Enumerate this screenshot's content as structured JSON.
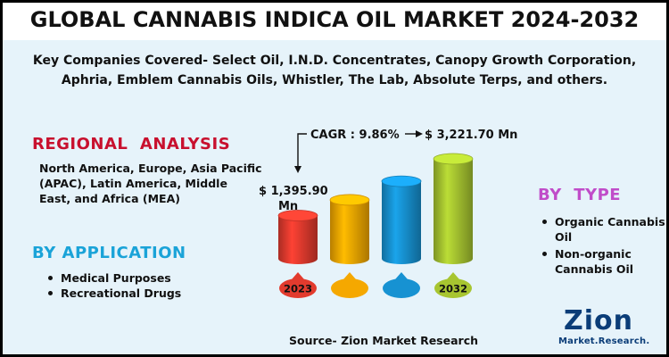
{
  "header": {
    "title": "GLOBAL CANNABIS INDICA OIL MARKET 2024-2032",
    "subtitle": "Key Companies Covered- Select Oil, I.N.D. Concentrates, Canopy Growth Corporation, Aphria, Emblem Cannabis Oils, Whistler, The Lab, Absolute Terps, and others."
  },
  "regional": {
    "title": "REGIONAL  ANALYSIS",
    "text": "North America, Europe, Asia Pacific (APAC), Latin America, Middle East, and Africa (MEA)"
  },
  "application": {
    "title": "BY APPLICATION",
    "items": [
      "Medical Purposes",
      "Recreational Drugs"
    ]
  },
  "type": {
    "title": "BY  TYPE",
    "items": [
      "Organic Cannabis Oil",
      "Non-organic Cannabis Oil"
    ]
  },
  "source": "Source- Zion Market Research",
  "logo": {
    "main": "Zion",
    "sub": "Market.Research."
  },
  "colors": {
    "title_red": "#c8102e",
    "application_blue": "#1aa3d8",
    "type_purple": "#c04cc9",
    "bars": [
      "#e23b2e",
      "#f5a800",
      "#1792d2",
      "#a7c530"
    ]
  },
  "chart_data": {
    "type": "bar",
    "categories": [
      "2023",
      "",
      "",
      "2032"
    ],
    "values": [
      1395.9,
      1900,
      2500,
      3221.7
    ],
    "first_label": "$ 1,395.90 Mn",
    "last_label": "$ 3,221.70 Mn",
    "cagr_label": "CAGR : 9.86%",
    "unit": "Mn"
  }
}
